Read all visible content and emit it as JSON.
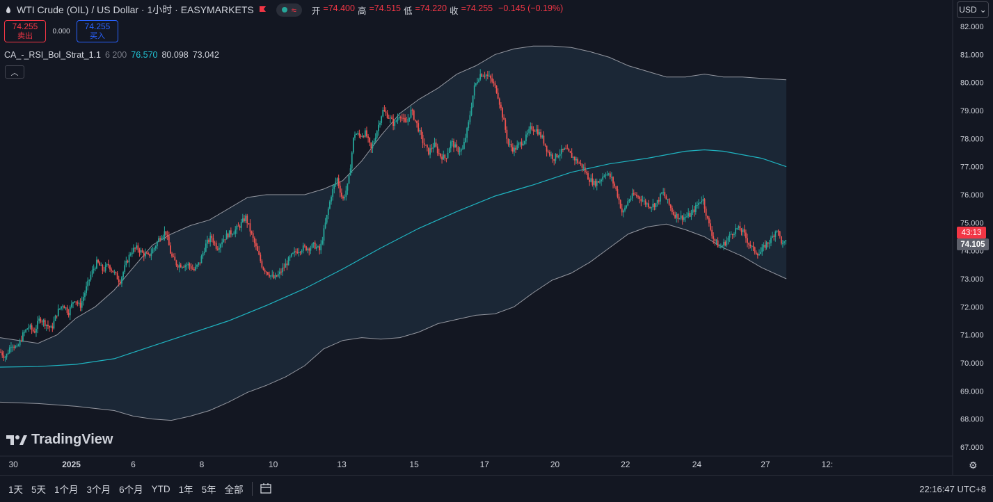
{
  "header": {
    "symbol_title": "WTI Crude (OIL) / US Dollar · 1小时 · EASYMARKETS",
    "ohlc": [
      {
        "label": "开",
        "value": "=74.400"
      },
      {
        "label": "高",
        "value": "=74.515"
      },
      {
        "label": "低",
        "value": "=74.220"
      },
      {
        "label": "收",
        "value": "=74.255"
      },
      {
        "label": "",
        "value": "−0.145 (−0.19%)"
      }
    ]
  },
  "trade": {
    "sell_price": "74.255",
    "sell_label": "卖出",
    "spread": "0.000",
    "buy_price": "74.255",
    "buy_label": "买入"
  },
  "indicator": {
    "name": "CA_-_RSI_Bol_Strat_1.1",
    "params": "6 200",
    "v1": "76.570",
    "v2": "80.098",
    "v3": "73.042"
  },
  "currency": "USD",
  "logo_text": "TradingView",
  "timeframes": [
    "1天",
    "5天",
    "1个月",
    "3个月",
    "6个月",
    "YTD",
    "1年",
    "5年",
    "全部"
  ],
  "clock": "22:16:47 UTC+8",
  "colors": {
    "up": "#26a69a",
    "down": "#ef5350",
    "basis": "#1fb5c2",
    "band": "#9598a1",
    "band_fill": "#1b2838",
    "countdown_bg": "#f23645",
    "last_bg": "#5d606b"
  },
  "chart_data": {
    "type": "candlestick",
    "y_axis": {
      "range": [
        66.7,
        82.25
      ],
      "ticks": [
        "82.000",
        "81.000",
        "80.000",
        "79.000",
        "78.000",
        "77.000",
        "76.000",
        "75.000",
        "74.000",
        "73.000",
        "72.000",
        "71.000",
        "70.000",
        "69.000",
        "68.000",
        "67.000"
      ]
    },
    "x_axis": {
      "range": [
        0,
        1000
      ],
      "ticks": [
        {
          "x": 14,
          "label": "30"
        },
        {
          "x": 75,
          "label": "2025"
        },
        {
          "x": 140,
          "label": "6"
        },
        {
          "x": 212,
          "label": "8"
        },
        {
          "x": 287,
          "label": "10"
        },
        {
          "x": 359,
          "label": "13"
        },
        {
          "x": 435,
          "label": "15"
        },
        {
          "x": 509,
          "label": "17"
        },
        {
          "x": 583,
          "label": "20"
        },
        {
          "x": 657,
          "label": "22"
        },
        {
          "x": 732,
          "label": "24"
        },
        {
          "x": 804,
          "label": "27"
        },
        {
          "x": 869,
          "label": "12:"
        }
      ]
    },
    "price_path": [
      [
        0,
        70.4
      ],
      [
        6,
        70.2
      ],
      [
        12,
        70.7
      ],
      [
        18,
        70.5
      ],
      [
        24,
        71.0
      ],
      [
        30,
        71.3
      ],
      [
        36,
        71.1
      ],
      [
        42,
        71.6
      ],
      [
        48,
        71.4
      ],
      [
        54,
        71.2
      ],
      [
        60,
        71.8
      ],
      [
        66,
        72.1
      ],
      [
        72,
        71.8
      ],
      [
        78,
        72.3
      ],
      [
        84,
        72.0
      ],
      [
        90,
        72.6
      ],
      [
        96,
        73.2
      ],
      [
        102,
        73.6
      ],
      [
        108,
        73.3
      ],
      [
        114,
        73.5
      ],
      [
        120,
        73.2
      ],
      [
        126,
        72.9
      ],
      [
        132,
        73.5
      ],
      [
        138,
        74.0
      ],
      [
        144,
        74.1
      ],
      [
        150,
        73.9
      ],
      [
        156,
        73.8
      ],
      [
        162,
        74.1
      ],
      [
        168,
        74.5
      ],
      [
        174,
        74.7
      ],
      [
        180,
        73.8
      ],
      [
        186,
        73.5
      ],
      [
        192,
        73.5
      ],
      [
        198,
        73.5
      ],
      [
        204,
        73.3
      ],
      [
        210,
        73.6
      ],
      [
        216,
        74.2
      ],
      [
        222,
        74.5
      ],
      [
        228,
        74.1
      ],
      [
        234,
        74.4
      ],
      [
        240,
        74.6
      ],
      [
        246,
        74.7
      ],
      [
        252,
        74.9
      ],
      [
        258,
        75.2
      ],
      [
        264,
        74.6
      ],
      [
        270,
        74.0
      ],
      [
        276,
        73.4
      ],
      [
        282,
        73.2
      ],
      [
        288,
        73.0
      ],
      [
        294,
        73.2
      ],
      [
        300,
        73.5
      ],
      [
        306,
        73.8
      ],
      [
        312,
        74.0
      ],
      [
        318,
        74.1
      ],
      [
        324,
        74.1
      ],
      [
        330,
        74.2
      ],
      [
        336,
        74.0
      ],
      [
        342,
        75.0
      ],
      [
        348,
        76.0
      ],
      [
        354,
        76.6
      ],
      [
        360,
        75.8
      ],
      [
        366,
        76.4
      ],
      [
        372,
        78.2
      ],
      [
        378,
        78.1
      ],
      [
        384,
        78.2
      ],
      [
        390,
        77.6
      ],
      [
        396,
        78.3
      ],
      [
        402,
        79.0
      ],
      [
        408,
        78.8
      ],
      [
        414,
        78.5
      ],
      [
        420,
        78.9
      ],
      [
        426,
        78.5
      ],
      [
        432,
        79.0
      ],
      [
        438,
        78.5
      ],
      [
        444,
        77.9
      ],
      [
        450,
        77.5
      ],
      [
        456,
        77.8
      ],
      [
        462,
        77.4
      ],
      [
        468,
        77.3
      ],
      [
        474,
        77.9
      ],
      [
        480,
        77.6
      ],
      [
        486,
        77.6
      ],
      [
        492,
        78.5
      ],
      [
        498,
        79.8
      ],
      [
        504,
        80.3
      ],
      [
        510,
        80.3
      ],
      [
        516,
        80.1
      ],
      [
        522,
        79.7
      ],
      [
        528,
        78.8
      ],
      [
        534,
        77.8
      ],
      [
        540,
        77.6
      ],
      [
        546,
        77.8
      ],
      [
        552,
        78.0
      ],
      [
        558,
        78.4
      ],
      [
        564,
        78.3
      ],
      [
        570,
        78.0
      ],
      [
        576,
        77.5
      ],
      [
        582,
        77.3
      ],
      [
        588,
        77.5
      ],
      [
        594,
        77.6
      ],
      [
        600,
        77.4
      ],
      [
        606,
        77.2
      ],
      [
        612,
        77.0
      ],
      [
        618,
        76.6
      ],
      [
        624,
        76.4
      ],
      [
        630,
        76.5
      ],
      [
        636,
        76.8
      ],
      [
        642,
        76.6
      ],
      [
        648,
        76.1
      ],
      [
        654,
        75.3
      ],
      [
        660,
        75.8
      ],
      [
        666,
        76.0
      ],
      [
        672,
        75.9
      ],
      [
        678,
        75.7
      ],
      [
        684,
        75.6
      ],
      [
        690,
        75.7
      ],
      [
        696,
        76.1
      ],
      [
        702,
        75.7
      ],
      [
        708,
        75.3
      ],
      [
        714,
        75.2
      ],
      [
        720,
        75.2
      ],
      [
        726,
        75.3
      ],
      [
        732,
        75.6
      ],
      [
        738,
        75.9
      ],
      [
        744,
        75.0
      ],
      [
        750,
        74.4
      ],
      [
        756,
        74.1
      ],
      [
        762,
        74.3
      ],
      [
        768,
        74.6
      ],
      [
        774,
        74.8
      ],
      [
        780,
        74.7
      ],
      [
        786,
        74.3
      ],
      [
        792,
        74.0
      ],
      [
        798,
        73.9
      ],
      [
        804,
        74.2
      ],
      [
        810,
        74.4
      ],
      [
        816,
        74.8
      ],
      [
        822,
        74.2
      ],
      [
        826,
        74.3
      ]
    ],
    "basis_line": [
      [
        0,
        69.85
      ],
      [
        40,
        69.87
      ],
      [
        80,
        69.95
      ],
      [
        120,
        70.15
      ],
      [
        160,
        70.6
      ],
      [
        200,
        71.05
      ],
      [
        240,
        71.5
      ],
      [
        280,
        72.05
      ],
      [
        320,
        72.65
      ],
      [
        360,
        73.35
      ],
      [
        400,
        74.1
      ],
      [
        440,
        74.8
      ],
      [
        480,
        75.4
      ],
      [
        520,
        75.95
      ],
      [
        560,
        76.35
      ],
      [
        600,
        76.8
      ],
      [
        640,
        77.1
      ],
      [
        680,
        77.3
      ],
      [
        720,
        77.55
      ],
      [
        740,
        77.6
      ],
      [
        760,
        77.55
      ],
      [
        800,
        77.3
      ],
      [
        826,
        77.0
      ]
    ],
    "upper_band": [
      [
        0,
        70.9
      ],
      [
        20,
        70.8
      ],
      [
        40,
        70.7
      ],
      [
        60,
        71.0
      ],
      [
        80,
        71.6
      ],
      [
        100,
        72.0
      ],
      [
        120,
        72.6
      ],
      [
        140,
        73.4
      ],
      [
        160,
        74.2
      ],
      [
        180,
        74.6
      ],
      [
        200,
        74.9
      ],
      [
        220,
        75.1
      ],
      [
        240,
        75.5
      ],
      [
        260,
        75.9
      ],
      [
        280,
        76.0
      ],
      [
        300,
        76.0
      ],
      [
        320,
        76.0
      ],
      [
        340,
        76.2
      ],
      [
        360,
        76.5
      ],
      [
        380,
        77.2
      ],
      [
        400,
        78.1
      ],
      [
        420,
        78.9
      ],
      [
        440,
        79.4
      ],
      [
        460,
        79.8
      ],
      [
        480,
        80.3
      ],
      [
        500,
        80.6
      ],
      [
        520,
        81.0
      ],
      [
        540,
        81.2
      ],
      [
        560,
        81.3
      ],
      [
        580,
        81.3
      ],
      [
        600,
        81.25
      ],
      [
        620,
        81.1
      ],
      [
        640,
        80.9
      ],
      [
        660,
        80.6
      ],
      [
        680,
        80.4
      ],
      [
        700,
        80.2
      ],
      [
        720,
        80.2
      ],
      [
        740,
        80.3
      ],
      [
        760,
        80.2
      ],
      [
        780,
        80.2
      ],
      [
        800,
        80.15
      ],
      [
        826,
        80.1
      ]
    ],
    "lower_band": [
      [
        0,
        68.6
      ],
      [
        40,
        68.55
      ],
      [
        80,
        68.45
      ],
      [
        120,
        68.3
      ],
      [
        140,
        68.1
      ],
      [
        160,
        68.0
      ],
      [
        180,
        67.95
      ],
      [
        200,
        68.1
      ],
      [
        220,
        68.3
      ],
      [
        240,
        68.6
      ],
      [
        260,
        68.95
      ],
      [
        280,
        69.2
      ],
      [
        300,
        69.5
      ],
      [
        320,
        69.9
      ],
      [
        340,
        70.5
      ],
      [
        360,
        70.8
      ],
      [
        380,
        70.9
      ],
      [
        400,
        70.85
      ],
      [
        420,
        70.9
      ],
      [
        440,
        71.1
      ],
      [
        460,
        71.4
      ],
      [
        480,
        71.55
      ],
      [
        500,
        71.7
      ],
      [
        520,
        71.75
      ],
      [
        540,
        72.0
      ],
      [
        560,
        72.5
      ],
      [
        580,
        72.95
      ],
      [
        600,
        73.2
      ],
      [
        620,
        73.6
      ],
      [
        640,
        74.1
      ],
      [
        660,
        74.6
      ],
      [
        680,
        74.85
      ],
      [
        700,
        74.95
      ],
      [
        720,
        74.75
      ],
      [
        740,
        74.5
      ],
      [
        760,
        74.1
      ],
      [
        780,
        73.8
      ],
      [
        800,
        73.4
      ],
      [
        826,
        73.0
      ]
    ],
    "countdown": "43:13",
    "last_price_label": "74.105"
  }
}
